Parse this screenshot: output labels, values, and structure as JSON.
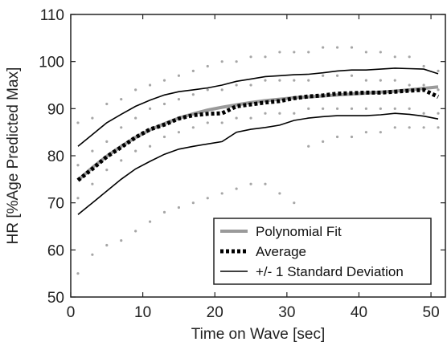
{
  "chart_data": {
    "type": "line",
    "title": "",
    "xlabel": "Time on Wave [sec]",
    "ylabel": "HR [%Age Predicted Max]",
    "xlim": [
      0,
      52
    ],
    "ylim": [
      50,
      110
    ],
    "xticks": [
      0,
      10,
      20,
      30,
      40,
      50
    ],
    "yticks": [
      50,
      60,
      70,
      80,
      90,
      100,
      110
    ],
    "grid": false,
    "legend_position": "bottom-right",
    "x": [
      1,
      3,
      5,
      7,
      9,
      11,
      13,
      15,
      17,
      19,
      21,
      23,
      25,
      27,
      29,
      31,
      33,
      35,
      37,
      39,
      41,
      43,
      45,
      47,
      49,
      51
    ],
    "series": [
      {
        "name": "Polynomial Fit",
        "style": "solid-thick",
        "color": "#9a9a9a",
        "values": [
          74.8,
          77.5,
          79.9,
          82.0,
          83.9,
          85.5,
          86.8,
          88.0,
          88.9,
          89.7,
          90.3,
          90.8,
          91.3,
          91.7,
          92.0,
          92.3,
          92.5,
          92.7,
          92.9,
          93.1,
          93.3,
          93.5,
          93.7,
          94.0,
          94.3,
          94.6
        ]
      },
      {
        "name": "Average",
        "style": "dotted-thick",
        "color": "#000000",
        "values": [
          74.8,
          77.2,
          79.8,
          81.8,
          83.9,
          85.6,
          86.6,
          87.9,
          88.6,
          88.9,
          89.0,
          90.5,
          90.9,
          91.3,
          91.6,
          92.2,
          92.6,
          92.8,
          93.2,
          93.3,
          93.4,
          93.4,
          93.6,
          93.8,
          94.0,
          92.5
        ]
      },
      {
        "name": "+/- 1 Standard Deviation",
        "style": "solid-thin",
        "color": "#000000",
        "values": [
          82.0,
          84.5,
          87.0,
          88.8,
          90.5,
          91.8,
          92.9,
          93.6,
          94.0,
          94.4,
          95.0,
          95.8,
          96.3,
          96.8,
          97.0,
          97.2,
          97.3,
          97.6,
          98.0,
          98.2,
          98.2,
          98.4,
          98.6,
          98.5,
          98.4,
          97.4
        ]
      },
      {
        "name": "",
        "style": "solid-thin",
        "color": "#000000",
        "values": [
          67.5,
          70.0,
          72.5,
          75.0,
          77.2,
          78.8,
          80.3,
          81.4,
          82.0,
          82.5,
          83.0,
          85.0,
          85.6,
          86.0,
          86.5,
          87.5,
          88.0,
          88.3,
          88.5,
          88.5,
          88.5,
          88.7,
          89.0,
          88.8,
          88.4,
          87.8
        ]
      },
      {
        "name": "",
        "style": "scatter-grey",
        "color": "#a6a6a6",
        "values": [
          87,
          88,
          91,
          92,
          94,
          95,
          96,
          97,
          98,
          99,
          100,
          100,
          101,
          101,
          102,
          102,
          102,
          103,
          103,
          103,
          102,
          102,
          101,
          101,
          99,
          98
        ]
      },
      {
        "name": "",
        "style": "scatter-grey",
        "color": "#a6a6a6",
        "values": [
          78,
          81,
          83,
          86,
          88,
          90,
          91,
          92,
          93,
          94,
          94,
          95,
          95,
          96,
          96,
          96,
          96,
          97,
          97,
          97,
          96,
          96,
          96,
          95,
          95,
          94
        ]
      },
      {
        "name": "",
        "style": "scatter-grey",
        "color": "#a6a6a6",
        "values": [
          71,
          74,
          77,
          79,
          81,
          82,
          84,
          85,
          86,
          87,
          87,
          88,
          88,
          89,
          89,
          89,
          90,
          90,
          90,
          90,
          90,
          90,
          90,
          90,
          89,
          89
        ]
      },
      {
        "name": "",
        "style": "scatter-grey",
        "color": "#a6a6a6",
        "values": [
          55,
          59,
          61,
          62,
          64,
          66,
          68,
          69,
          70,
          71,
          72,
          73,
          74,
          74,
          72,
          70,
          82,
          83,
          84,
          84,
          85,
          85,
          86,
          86,
          86,
          86
        ]
      }
    ]
  }
}
